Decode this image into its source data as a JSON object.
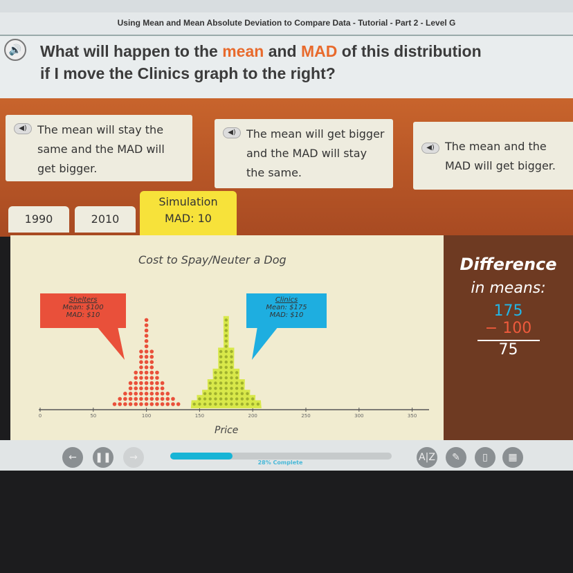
{
  "header": {
    "title": "Using Mean and Mean Absolute Deviation to Compare Data - Tutorial - Part 2 - Level G"
  },
  "question": {
    "part1": "What will happen to the ",
    "mean": "mean",
    "part2": " and ",
    "mad": "MAD",
    "part3": " of this distribution if I move the Clinics graph to the right?",
    "icon": "speaker-icon"
  },
  "answers": [
    {
      "text": "The mean will stay the same and the MAD will get bigger."
    },
    {
      "text": "The mean will get bigger and the MAD will stay the same."
    },
    {
      "text": "The mean and the MAD will get bigger."
    }
  ],
  "tabs": [
    {
      "label": "1990"
    },
    {
      "label": "2010"
    },
    {
      "label": "Simulation",
      "sub": "MAD: 10"
    }
  ],
  "chart_data": {
    "type": "dot plot",
    "title": "Cost to Spay/Neuter a Dog",
    "xlabel": "Price",
    "xlim": [
      0,
      350
    ],
    "xticks": [
      0,
      50,
      100,
      150,
      200,
      250,
      300,
      350
    ],
    "series": [
      {
        "name": "Shelters",
        "mean_label": "Mean:  $100",
        "mad_label": "MAD:  $10",
        "color": "#e9503a",
        "x": [
          70,
          75,
          80,
          85,
          90,
          95,
          100,
          105,
          110,
          115,
          120,
          125,
          130
        ],
        "counts": [
          1,
          2,
          3,
          5,
          7,
          11,
          17,
          11,
          7,
          5,
          3,
          2,
          1
        ]
      },
      {
        "name": "Clinics",
        "mean_label": "Mean:  $175",
        "mad_label": "MAD:  $10",
        "color": "#d8e84a",
        "x": [
          145,
          150,
          155,
          160,
          165,
          170,
          175,
          180,
          185,
          190,
          195,
          200,
          205
        ],
        "counts": [
          1,
          2,
          3,
          5,
          7,
          11,
          17,
          11,
          7,
          5,
          3,
          2,
          1
        ]
      }
    ]
  },
  "difference": {
    "title": "Difference",
    "subtitle": "in means:",
    "a": "175",
    "b": "− 100",
    "result": "75"
  },
  "toolbar": {
    "progress": 28,
    "progress_label": "28% Complete"
  }
}
